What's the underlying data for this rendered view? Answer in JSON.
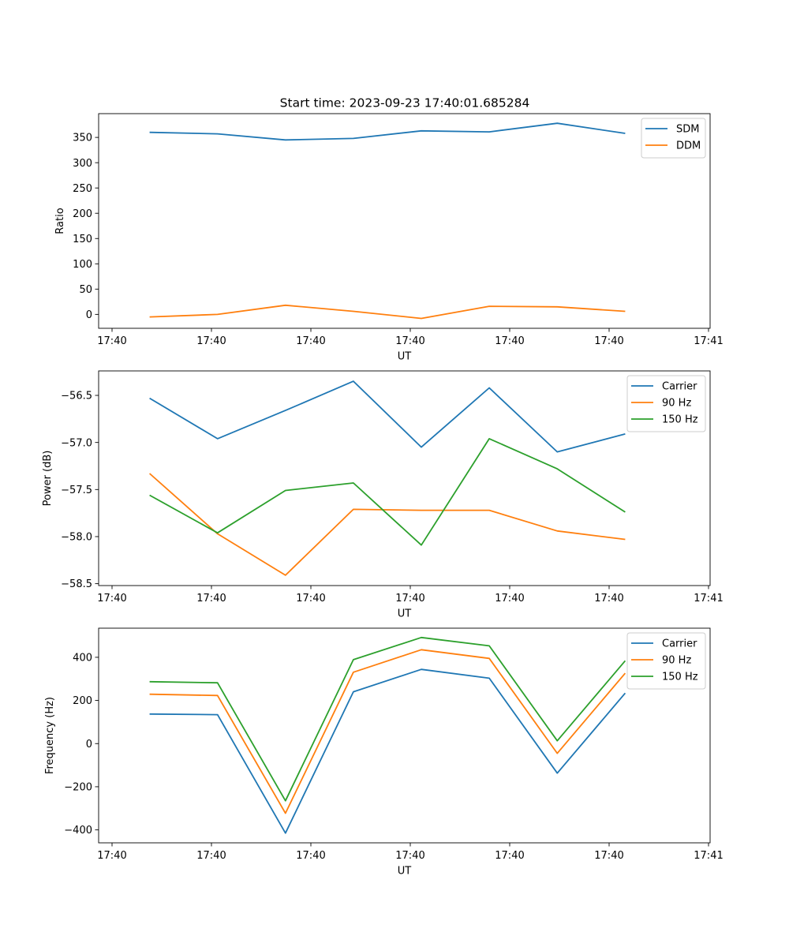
{
  "figure_title": "Start time: 2023-09-23 17:40:01.685284",
  "chart_data": [
    {
      "type": "line",
      "xlabel": "UT",
      "ylabel": "Ratio",
      "x_tick_labels": [
        "17:40",
        "17:40",
        "17:40",
        "17:40",
        "17:40",
        "17:40",
        "17:41"
      ],
      "ylim": [
        -27.5,
        397
      ],
      "y_ticks": [
        0,
        50,
        100,
        150,
        200,
        250,
        300,
        350
      ],
      "legend_location": "upper right",
      "x": [
        1,
        2,
        3,
        4,
        5,
        6,
        7,
        8
      ],
      "xlim": [
        0.25,
        9.25
      ],
      "series": [
        {
          "name": "SDM",
          "color": "#1f77b4",
          "values": [
            360,
            357,
            345,
            348,
            363,
            361,
            378,
            358
          ]
        },
        {
          "name": "DDM",
          "color": "#ff7f0e",
          "values": [
            -5,
            0,
            18,
            6,
            -8,
            16,
            15,
            6
          ]
        }
      ]
    },
    {
      "type": "line",
      "xlabel": "UT",
      "ylabel": "Power (dB)",
      "x_tick_labels": [
        "17:40",
        "17:40",
        "17:40",
        "17:40",
        "17:40",
        "17:40",
        "17:41"
      ],
      "ylim": [
        -58.52,
        -56.24
      ],
      "y_ticks": [
        -58.5,
        -58.0,
        -57.5,
        -57.0,
        -56.5
      ],
      "y_tick_labels": [
        "−58.5",
        "−58.0",
        "−57.5",
        "−57.0",
        "−56.5"
      ],
      "legend_location": "upper right",
      "x": [
        1,
        2,
        3,
        4,
        5,
        6,
        7,
        8
      ],
      "xlim": [
        0.25,
        9.25
      ],
      "series": [
        {
          "name": "Carrier",
          "color": "#1f77b4",
          "values": [
            -56.53,
            -56.96,
            -56.66,
            -56.35,
            -57.05,
            -56.42,
            -57.1,
            -56.91
          ]
        },
        {
          "name": "90 Hz",
          "color": "#ff7f0e",
          "values": [
            -57.33,
            -57.97,
            -58.41,
            -57.71,
            -57.72,
            -57.72,
            -57.94,
            -58.03
          ]
        },
        {
          "name": "150 Hz",
          "color": "#2ca02c",
          "values": [
            -57.56,
            -57.96,
            -57.51,
            -57.43,
            -58.09,
            -56.96,
            -57.28,
            -57.74
          ]
        }
      ]
    },
    {
      "type": "line",
      "xlabel": "UT",
      "ylabel": "Frequency (Hz)",
      "x_tick_labels": [
        "17:40",
        "17:40",
        "17:40",
        "17:40",
        "17:40",
        "17:40",
        "17:41"
      ],
      "ylim": [
        -460,
        535
      ],
      "y_ticks": [
        -400,
        -200,
        0,
        200,
        400
      ],
      "y_tick_labels": [
        "−400",
        "−200",
        "0",
        "200",
        "400"
      ],
      "legend_location": "upper right",
      "x": [
        1,
        2,
        3,
        4,
        5,
        6,
        7,
        8
      ],
      "xlim": [
        0.25,
        9.25
      ],
      "series": [
        {
          "name": "Carrier",
          "color": "#1f77b4",
          "values": [
            137,
            134,
            -415,
            240,
            344,
            303,
            -137,
            234
          ]
        },
        {
          "name": "90 Hz",
          "color": "#ff7f0e",
          "values": [
            229,
            223,
            -323,
            331,
            435,
            395,
            -45,
            326
          ]
        },
        {
          "name": "150 Hz",
          "color": "#2ca02c",
          "values": [
            287,
            282,
            -265,
            389,
            492,
            453,
            13,
            384
          ]
        }
      ]
    }
  ]
}
